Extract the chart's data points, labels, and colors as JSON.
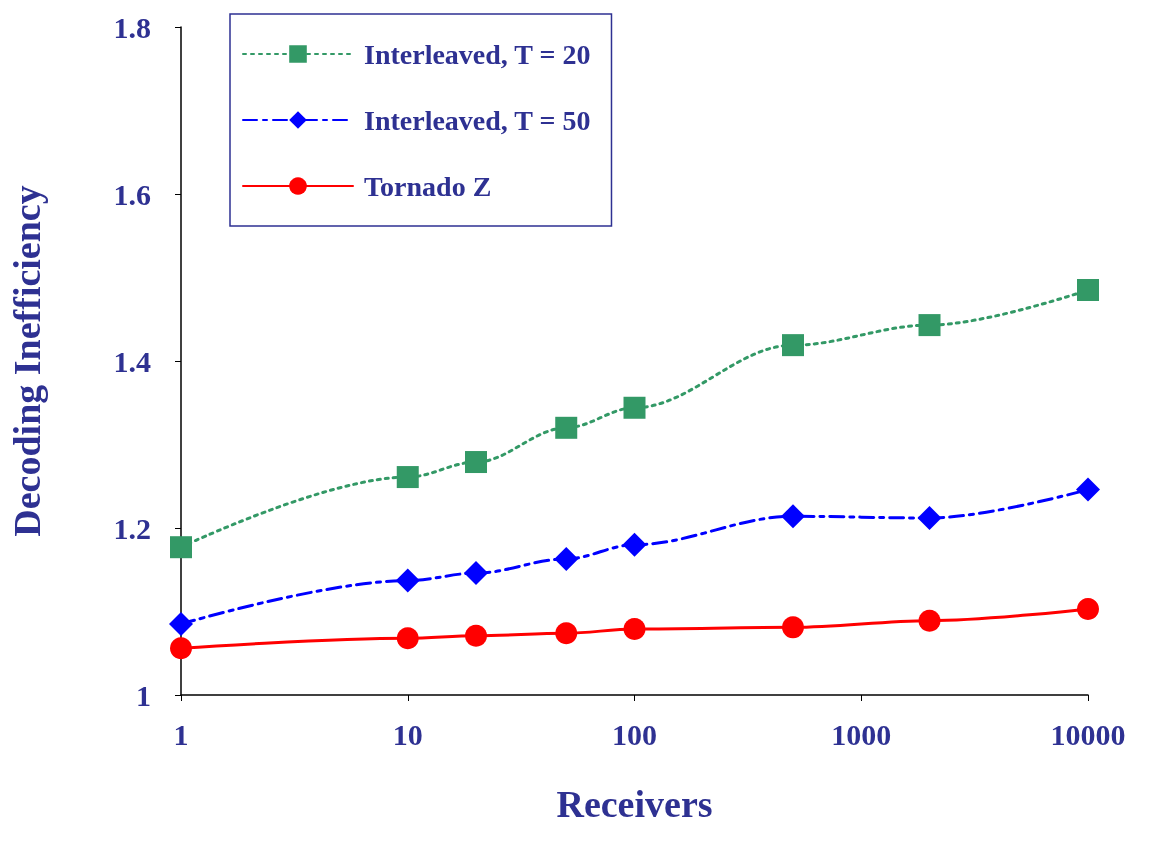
{
  "chart_data": {
    "type": "line",
    "xlabel": "Receivers",
    "ylabel": "Decoding Inefficiency",
    "x": [
      1,
      10,
      20,
      50,
      100,
      500,
      2000,
      10000
    ],
    "series": [
      {
        "name": "Interleaved, T = 20",
        "color": "#339966",
        "marker": "square",
        "line_style": "dotted",
        "values": [
          1.177,
          1.261,
          1.279,
          1.32,
          1.344,
          1.419,
          1.443,
          1.485
        ]
      },
      {
        "name": "Interleaved, T = 50",
        "color": "#0000ff",
        "marker": "diamond",
        "line_style": "dashed",
        "values": [
          1.085,
          1.137,
          1.146,
          1.163,
          1.18,
          1.214,
          1.212,
          1.246
        ]
      },
      {
        "name": "Tornado Z",
        "color": "#ff0000",
        "marker": "circle",
        "line_style": "solid",
        "values": [
          1.056,
          1.068,
          1.071,
          1.074,
          1.079,
          1.081,
          1.089,
          1.103
        ]
      }
    ],
    "log": "x",
    "xlim": [
      1,
      10000
    ],
    "xticks": [
      1,
      10,
      100,
      1000,
      10000
    ],
    "ylim": [
      1,
      1.8
    ],
    "yticks": [
      1,
      1.2,
      1.4,
      1.6,
      1.8
    ],
    "grid": false,
    "legend": "top left"
  }
}
